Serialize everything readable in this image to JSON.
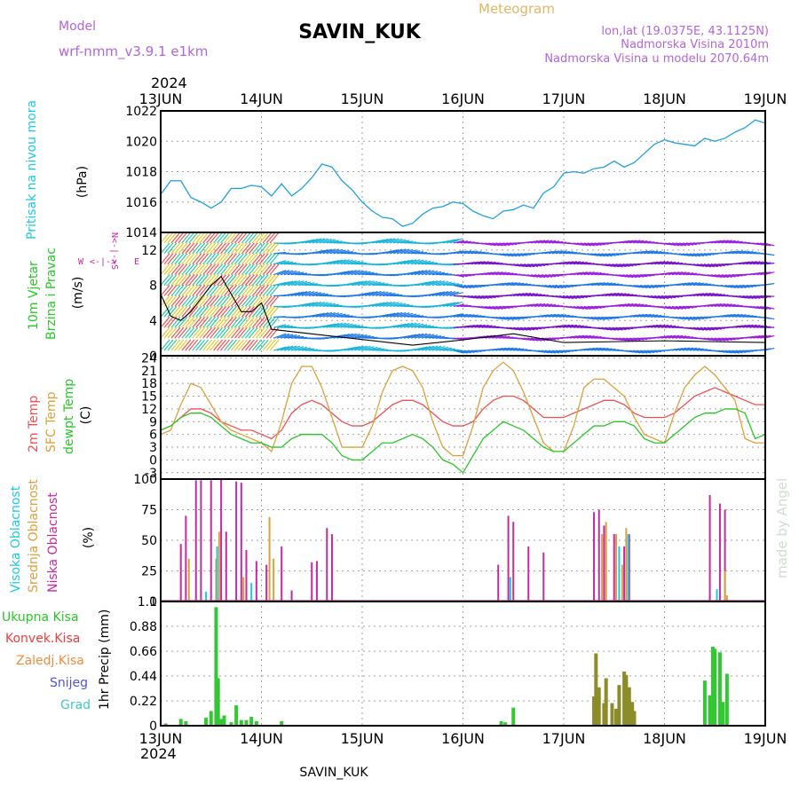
{
  "header": {
    "model_label": "Model",
    "model_name": "wrf-nmm_v3.9.1 e1km",
    "station": "SAVIN_KUK",
    "meteogram_label": "Meteogram",
    "lonlat": "lon,lat (19.0375E, 43.1125N)",
    "elevation": "Nadmorska Visina 2010m",
    "model_elevation": "Nadmorska Visina u modelu 2070.64m",
    "year_top": "2024",
    "year_bottom": "2024",
    "footer_station": "SAVIN_KUK",
    "credit": "made by Angel"
  },
  "x_axis": {
    "ticks": [
      "13JUN",
      "14JUN",
      "15JUN",
      "16JUN",
      "17JUN",
      "18JUN",
      "19JUN"
    ],
    "days": 6
  },
  "colors": {
    "pressure": "#1ea0e6",
    "temp2m": "#f05050",
    "sfc": "#dca03c",
    "dewpt": "#28c828",
    "green_label": "#28c828",
    "cyan_label": "#1ec8e6",
    "magenta": "#c828a0",
    "purple_text": "#b464dc",
    "orange_text": "#e6b464",
    "ukupna": "#28c828",
    "konvek": "#f03c3c",
    "zaledj": "#f08c3c",
    "snijeg": "#5050e6",
    "grad": "#3cc8c8",
    "precip_bar": "#32c832",
    "precip_bar_olive": "#8c8c28"
  },
  "panels": {
    "pressure": {
      "label_main": "Pritisak na nivou mora",
      "unit": "(hPa)",
      "yticks": [
        "1022",
        "1020",
        "1018",
        "1016",
        "1014"
      ]
    },
    "wind": {
      "label_a": "10m Vjetar",
      "label_b": "Brzina i Pravac",
      "unit": "(m/s)",
      "yticks": [
        "12",
        "8",
        "4",
        "0"
      ],
      "compass_n": "N",
      "compass_s": "S",
      "compass_w": "W",
      "compass_e": "E",
      "compass_ns": "N<-|->S",
      "compass_we": "<-|->"
    },
    "temp": {
      "label_a": "2m Temp",
      "label_b": "SFC Temp",
      "label_c": "dewpt Temp",
      "unit": "(C)",
      "yticks": [
        "24",
        "21",
        "18",
        "15",
        "12",
        "9",
        "6",
        "3",
        "0",
        "-3"
      ]
    },
    "cloud": {
      "label_a": "Visoka Oblacnost",
      "label_b": "Srednja Oblacnost",
      "label_c": "Niska Oblacnost",
      "unit": "(%)",
      "yticks": [
        "100",
        "75",
        "50",
        "25",
        "0"
      ]
    },
    "precip": {
      "label_unit": "1hr Precip (mm)",
      "yticks": [
        "1.1",
        "0.88",
        "0.66",
        "0.44",
        "0.22",
        "0"
      ],
      "legend": [
        "Ukupna Kisa",
        "Konvek.Kisa",
        "Zaledj.Kisa",
        "Snijeg",
        "Grad"
      ]
    }
  },
  "chart_data": [
    {
      "type": "line",
      "name": "pressure",
      "ylim": [
        1014,
        1022
      ],
      "x_days": [
        0,
        0.1,
        0.2,
        0.3,
        0.4,
        0.5,
        0.6,
        0.7,
        0.8,
        0.9,
        1.0,
        1.1,
        1.2,
        1.3,
        1.4,
        1.5,
        1.6,
        1.7,
        1.8,
        1.9,
        2.0,
        2.1,
        2.2,
        2.3,
        2.4,
        2.5,
        2.6,
        2.7,
        2.8,
        2.9,
        3.0,
        3.1,
        3.2,
        3.3,
        3.4,
        3.5,
        3.6,
        3.7,
        3.8,
        3.9,
        4.0,
        4.1,
        4.2,
        4.3,
        4.4,
        4.5,
        4.6,
        4.7,
        4.8,
        4.9,
        5.0,
        5.1,
        5.2,
        5.3,
        5.4,
        5.5,
        5.6,
        5.7,
        5.8,
        5.9,
        6.0
      ],
      "values": [
        1016.5,
        1017.4,
        1017.4,
        1016.3,
        1016.0,
        1015.6,
        1016.0,
        1016.9,
        1016.9,
        1017.1,
        1017.0,
        1016.4,
        1017.2,
        1016.4,
        1016.9,
        1017.6,
        1018.5,
        1018.3,
        1017.4,
        1016.8,
        1016.0,
        1015.4,
        1015.0,
        1014.9,
        1014.4,
        1014.6,
        1015.2,
        1015.6,
        1015.7,
        1016.0,
        1015.9,
        1015.4,
        1015.1,
        1014.9,
        1015.4,
        1015.5,
        1015.8,
        1015.6,
        1016.6,
        1017.0,
        1017.9,
        1018.0,
        1017.9,
        1018.2,
        1018.3,
        1018.7,
        1018.3,
        1018.6,
        1019.2,
        1019.8,
        1020.1,
        1019.9,
        1019.8,
        1019.7,
        1020.2,
        1020.0,
        1020.2,
        1020.6,
        1020.9,
        1021.4,
        1021.2
      ]
    },
    {
      "type": "vector",
      "name": "wind",
      "ylim": [
        0,
        14
      ],
      "speed_days": [
        0,
        0.1,
        0.2,
        0.3,
        0.4,
        0.5,
        0.6,
        0.7,
        0.8,
        0.9,
        1.0,
        1.1,
        2.5,
        3.0,
        3.5,
        4.0,
        4.5,
        5.0,
        5.5,
        6.0
      ],
      "speed_values": [
        7,
        4.5,
        4,
        5,
        6.5,
        8,
        9,
        7,
        5,
        5,
        6,
        3,
        1.2,
        1.8,
        2.5,
        1.5,
        1.6,
        1.7,
        1.6,
        1.5
      ]
    },
    {
      "type": "line",
      "name": "temperature",
      "ylim": [
        -4.5,
        24.5
      ],
      "x_days": [
        0,
        0.1,
        0.2,
        0.3,
        0.4,
        0.5,
        0.6,
        0.7,
        0.8,
        0.9,
        1.0,
        1.1,
        1.2,
        1.3,
        1.4,
        1.5,
        1.6,
        1.7,
        1.8,
        1.9,
        2.0,
        2.1,
        2.2,
        2.3,
        2.4,
        2.5,
        2.6,
        2.7,
        2.8,
        2.9,
        3.0,
        3.1,
        3.2,
        3.3,
        3.4,
        3.5,
        3.6,
        3.7,
        3.8,
        3.9,
        4.0,
        4.1,
        4.2,
        4.3,
        4.4,
        4.5,
        4.6,
        4.7,
        4.8,
        4.9,
        5.0,
        5.1,
        5.2,
        5.3,
        5.4,
        5.5,
        5.6,
        5.7,
        5.8,
        5.9,
        6.0
      ],
      "series": [
        {
          "key": "temp2m",
          "values": [
            7,
            8,
            10,
            12,
            12,
            11,
            9,
            8,
            7,
            7,
            6,
            5,
            7,
            11,
            13,
            14,
            13,
            11,
            9,
            8,
            8,
            9,
            11,
            13,
            14,
            14,
            13,
            11,
            9,
            8,
            8,
            9,
            12,
            14,
            15,
            15,
            14,
            12,
            10,
            10,
            10,
            11,
            12,
            13,
            14,
            14,
            13,
            11,
            10,
            10,
            10,
            11,
            13,
            15,
            16,
            17,
            16,
            15,
            14,
            13,
            13
          ]
        },
        {
          "key": "sfc",
          "values": [
            6,
            7,
            13,
            18,
            17,
            13,
            9,
            7,
            6,
            5,
            4,
            2,
            9,
            18,
            22,
            22,
            17,
            10,
            3,
            3,
            3,
            8,
            16,
            21,
            22,
            21,
            17,
            9,
            3,
            1,
            1,
            8,
            17,
            21,
            23,
            21,
            16,
            10,
            4,
            2,
            2,
            8,
            17,
            19,
            19,
            17,
            15,
            10,
            6,
            5,
            4,
            11,
            17,
            20,
            22,
            20,
            17,
            14,
            5,
            4,
            4
          ]
        },
        {
          "key": "dewpt",
          "values": [
            7,
            8,
            10,
            11,
            11,
            10,
            8,
            6,
            5,
            4,
            4,
            3,
            3,
            5,
            6,
            6,
            6,
            4,
            1,
            0,
            0,
            2,
            4,
            4,
            5,
            6,
            5,
            3,
            0,
            -1,
            -3,
            1,
            5,
            7,
            9,
            8,
            7,
            5,
            3,
            2,
            2,
            4,
            6,
            8,
            8,
            9,
            9,
            8,
            5,
            4,
            4,
            6,
            8,
            10,
            11,
            11,
            12,
            12,
            11,
            5,
            6
          ]
        }
      ]
    },
    {
      "type": "bar",
      "name": "cloud",
      "ylim": [
        0,
        100
      ],
      "series": [
        {
          "key": "niska",
          "x_days": [
            0.2,
            0.25,
            0.35,
            0.4,
            0.5,
            0.6,
            0.65,
            0.75,
            0.8,
            0.85,
            0.95,
            1.05,
            1.2,
            1.3,
            1.5,
            1.55,
            1.65,
            1.7,
            3.35,
            3.45,
            3.5,
            3.65,
            3.8,
            4.3,
            4.35,
            4.4,
            4.5,
            4.6,
            4.65,
            5.45,
            5.55,
            5.6
          ],
          "values": [
            47,
            70,
            99,
            99,
            99,
            100,
            57,
            98,
            97,
            42,
            33,
            30,
            45,
            9,
            32,
            33,
            60,
            55,
            30,
            70,
            65,
            45,
            40,
            73,
            75,
            62,
            55,
            45,
            55,
            87,
            80,
            75
          ]
        },
        {
          "key": "srednja",
          "x_days": [
            0.28,
            0.55,
            0.58,
            0.82,
            1.08,
            1.12,
            4.38,
            4.42,
            4.52,
            4.58,
            4.62,
            5.6,
            5.62
          ],
          "values": [
            35,
            35,
            57,
            20,
            69,
            35,
            55,
            65,
            55,
            30,
            60,
            25,
            5
          ]
        },
        {
          "key": "visoka",
          "x_days": [
            0.45,
            0.56,
            0.9,
            3.47,
            4.55,
            4.64,
            5.52
          ],
          "values": [
            8,
            45,
            15,
            20,
            45,
            55,
            10
          ]
        }
      ]
    },
    {
      "type": "bar",
      "name": "precip",
      "ylim": [
        0,
        1.1
      ],
      "x_days": [
        0.05,
        0.2,
        0.25,
        0.45,
        0.5,
        0.55,
        0.57,
        0.6,
        0.63,
        0.7,
        0.75,
        0.8,
        0.85,
        0.9,
        0.95,
        1.2,
        3.38,
        3.42,
        3.5,
        4.3,
        4.32,
        4.35,
        4.4,
        4.42,
        4.48,
        4.52,
        4.55,
        4.6,
        4.62,
        4.65,
        4.68,
        4.7,
        5.4,
        5.45,
        5.48,
        5.5,
        5.55,
        5.58,
        5.62
      ],
      "values": [
        0.02,
        0.06,
        0.04,
        0.07,
        0.13,
        1.05,
        0.42,
        0.06,
        0.09,
        0.03,
        0.18,
        0.05,
        0.05,
        0.08,
        0.04,
        0.04,
        0.04,
        0.03,
        0.16,
        0.26,
        0.64,
        0.34,
        0.2,
        0.42,
        0.2,
        0.15,
        0.36,
        0.48,
        0.45,
        0.34,
        0.21,
        0.13,
        0.4,
        0.27,
        0.7,
        0.68,
        0.65,
        0.21,
        0.46
      ]
    }
  ]
}
